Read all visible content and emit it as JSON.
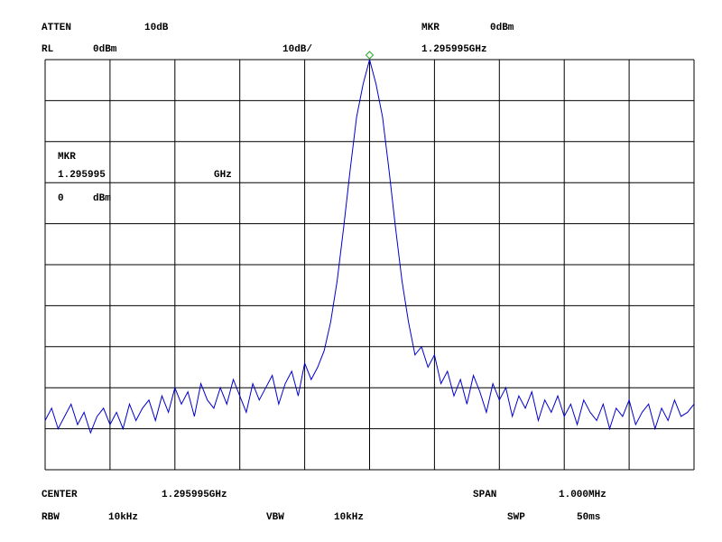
{
  "chart_data": {
    "type": "line",
    "header": {
      "atten_label": "ATTEN",
      "atten": "10dB",
      "mkr_label": "MKR",
      "mkr_level": "0dBm",
      "rl_label": "RL",
      "rl": "0dBm",
      "scale": "10dB/",
      "mkr_freq": "1.295995GHz"
    },
    "marker_box": {
      "label": "MKR",
      "freq_unit": "GHz",
      "level_unit": "dBm"
    },
    "footer": {
      "center_label": "CENTER",
      "center": "1.295995GHz",
      "span_label": "SPAN",
      "span": "1.000MHz",
      "rbw_label": "RBW",
      "rbw": "10kHz",
      "vbw_label": "VBW",
      "vbw": "10kHz",
      "swp_label": "SWP",
      "swp": "50ms"
    },
    "marker": {
      "x": 1.295995,
      "y": 0,
      "color": "#22aa22"
    },
    "color": "#0000cc",
    "grid": true,
    "xlim": [
      1.295495,
      1.296495
    ],
    "ylim": [
      -100,
      0
    ],
    "xticks": [
      1.295495,
      1.295595,
      1.295695,
      1.295795,
      1.295895,
      1.295995,
      1.296095,
      1.296195,
      1.296295,
      1.296395,
      1.296495
    ],
    "yticks": [
      -100,
      -90,
      -80,
      -70,
      -60,
      -50,
      -40,
      -30,
      -20,
      -10,
      0
    ],
    "x": [
      1.295495,
      1.295505,
      1.295515,
      1.295525,
      1.295535,
      1.295545,
      1.295555,
      1.295565,
      1.295575,
      1.295585,
      1.295595,
      1.295605,
      1.295615,
      1.295625,
      1.295635,
      1.295645,
      1.295655,
      1.295665,
      1.295675,
      1.295685,
      1.295695,
      1.295705,
      1.295715,
      1.295725,
      1.295735,
      1.295745,
      1.295755,
      1.295765,
      1.295775,
      1.295785,
      1.295795,
      1.295805,
      1.295815,
      1.295825,
      1.295835,
      1.295845,
      1.295855,
      1.295865,
      1.295875,
      1.295885,
      1.295895,
      1.295905,
      1.295915,
      1.295925,
      1.295935,
      1.295945,
      1.295955,
      1.295965,
      1.295975,
      1.295985,
      1.295995,
      1.296005,
      1.296015,
      1.296025,
      1.296035,
      1.296045,
      1.296055,
      1.296065,
      1.296075,
      1.296085,
      1.296095,
      1.296105,
      1.296115,
      1.296125,
      1.296135,
      1.296145,
      1.296155,
      1.296165,
      1.296175,
      1.296185,
      1.296195,
      1.296205,
      1.296215,
      1.296225,
      1.296235,
      1.296245,
      1.296255,
      1.296265,
      1.296275,
      1.296285,
      1.296295,
      1.296305,
      1.296315,
      1.296325,
      1.296335,
      1.296345,
      1.296355,
      1.296365,
      1.296375,
      1.296385,
      1.296395,
      1.296405,
      1.296415,
      1.296425,
      1.296435,
      1.296445,
      1.296455,
      1.296465,
      1.296475,
      1.296485,
      1.296495
    ],
    "values": [
      -88,
      -85,
      -90,
      -87,
      -84,
      -89,
      -86,
      -91,
      -87,
      -85,
      -89,
      -86,
      -90,
      -84,
      -88,
      -85,
      -83,
      -88,
      -82,
      -86,
      -80,
      -84,
      -81,
      -87,
      -79,
      -83,
      -85,
      -80,
      -84,
      -78,
      -82,
      -86,
      -79,
      -83,
      -80,
      -77,
      -84,
      -79,
      -76,
      -82,
      -74,
      -78,
      -75,
      -71,
      -64,
      -54,
      -41,
      -27,
      -14,
      -6,
      0,
      -6,
      -14,
      -27,
      -41,
      -54,
      -64,
      -72,
      -70,
      -75,
      -72,
      -79,
      -76,
      -82,
      -78,
      -84,
      -77,
      -81,
      -86,
      -79,
      -83,
      -80,
      -87,
      -82,
      -85,
      -81,
      -88,
      -83,
      -86,
      -82,
      -87,
      -84,
      -89,
      -83,
      -86,
      -88,
      -84,
      -90,
      -85,
      -87,
      -83,
      -89,
      -86,
      -84,
      -90,
      -85,
      -88,
      -83,
      -87,
      -86,
      -84
    ]
  }
}
